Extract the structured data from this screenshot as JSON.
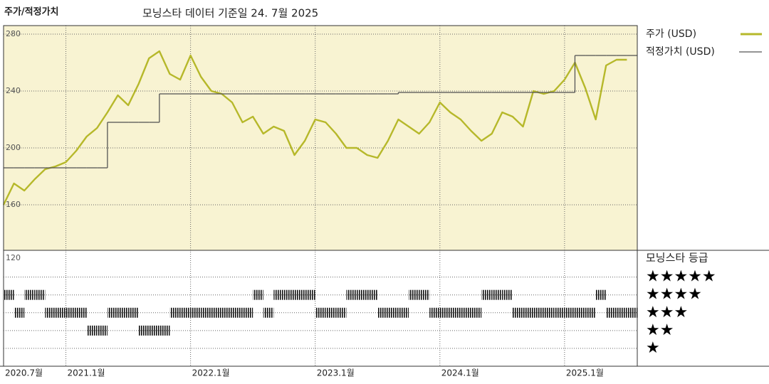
{
  "chart_data": [
    {
      "type": "line",
      "title": "주가/적정가치",
      "subtitle": "모닝스타 데이터 기준일 24. 7월 2025",
      "x": [
        "2020-07",
        "2020-08",
        "2020-09",
        "2020-10",
        "2020-11",
        "2020-12",
        "2021-01",
        "2021-02",
        "2021-03",
        "2021-04",
        "2021-05",
        "2021-06",
        "2021-07",
        "2021-08",
        "2021-09",
        "2021-10",
        "2021-11",
        "2021-12",
        "2022-01",
        "2022-02",
        "2022-03",
        "2022-04",
        "2022-05",
        "2022-06",
        "2022-07",
        "2022-08",
        "2022-09",
        "2022-10",
        "2022-11",
        "2022-12",
        "2023-01",
        "2023-02",
        "2023-03",
        "2023-04",
        "2023-05",
        "2023-06",
        "2023-07",
        "2023-08",
        "2023-09",
        "2023-10",
        "2023-11",
        "2023-12",
        "2024-01",
        "2024-02",
        "2024-03",
        "2024-04",
        "2024-05",
        "2024-06",
        "2024-07",
        "2024-08",
        "2024-09",
        "2024-10",
        "2024-11",
        "2024-12",
        "2025-01",
        "2025-02",
        "2025-03",
        "2025-04",
        "2025-05",
        "2025-06",
        "2025-07"
      ],
      "series": [
        {
          "name": "주가 (USD)",
          "color": "#b6b82a",
          "style": "line",
          "values": [
            160,
            175,
            170,
            178,
            185,
            187,
            190,
            198,
            208,
            214,
            225,
            237,
            230,
            245,
            263,
            268,
            252,
            248,
            265,
            250,
            240,
            238,
            232,
            218,
            222,
            210,
            215,
            212,
            195,
            205,
            220,
            218,
            210,
            200,
            200,
            195,
            193,
            205,
            220,
            215,
            210,
            218,
            232,
            225,
            220,
            212,
            205,
            210,
            225,
            222,
            215,
            240,
            238,
            240,
            248,
            260,
            242,
            220,
            258,
            262,
            262
          ]
        },
        {
          "name": "적정가치 (USD)",
          "color": "#555555",
          "style": "step",
          "values": [
            186,
            186,
            186,
            186,
            186,
            186,
            186,
            186,
            186,
            186,
            218,
            218,
            218,
            218,
            218,
            238,
            238,
            238,
            238,
            238,
            238,
            238,
            238,
            238,
            238,
            238,
            238,
            238,
            238,
            238,
            238,
            238,
            238,
            238,
            238,
            238,
            238,
            238,
            239,
            239,
            239,
            239,
            239,
            239,
            239,
            239,
            239,
            239,
            239,
            239,
            239,
            239,
            239,
            239,
            239,
            265,
            265,
            265,
            265,
            265,
            265
          ]
        }
      ],
      "xlim": [
        "2020-07",
        "2025-08"
      ],
      "xticks": [
        {
          "value": "2020-07",
          "label": "2020.7월"
        },
        {
          "value": "2021-01",
          "label": "2021.1월"
        },
        {
          "value": "2022-01",
          "label": "2022.1월"
        },
        {
          "value": "2023-01",
          "label": "2023.1월"
        },
        {
          "value": "2024-01",
          "label": "2024.1월"
        },
        {
          "value": "2025-01",
          "label": "2025.1월"
        }
      ],
      "ylim": [
        128,
        286
      ],
      "yticks": [
        160,
        200,
        240,
        280
      ],
      "grid": true,
      "background": "#f8f3d2"
    },
    {
      "type": "rating",
      "title": "모닝스타 등급",
      "top_label": "120",
      "levels": [
        {
          "value": 5,
          "label": "★★★★★"
        },
        {
          "value": 4,
          "label": "★★★★"
        },
        {
          "value": 3,
          "label": "★★★"
        },
        {
          "value": 2,
          "label": "★★"
        },
        {
          "value": 1,
          "label": "★"
        }
      ],
      "values": [
        4,
        3,
        4,
        4,
        3,
        3,
        3,
        3,
        2,
        2,
        3,
        3,
        3,
        2,
        2,
        2,
        3,
        3,
        3,
        3,
        3,
        3,
        3,
        3,
        4,
        3,
        4,
        4,
        4,
        4,
        3,
        3,
        3,
        4,
        4,
        4,
        3,
        3,
        3,
        4,
        4,
        3,
        3,
        3,
        3,
        3,
        4,
        4,
        4,
        3,
        3,
        3,
        3,
        3,
        3,
        3,
        3,
        4,
        3,
        3,
        3
      ],
      "ylim": [
        0,
        6.5
      ]
    }
  ]
}
